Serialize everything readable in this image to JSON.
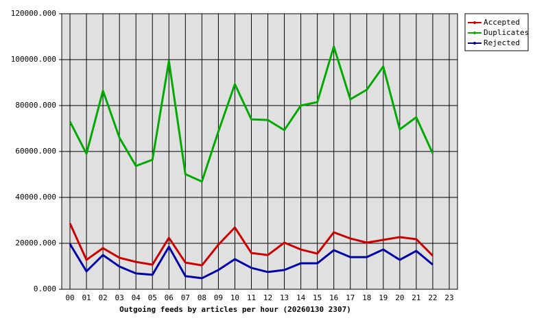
{
  "chart_data": {
    "type": "line",
    "x_label": "Outgoing feeds by articles per hour (20260130 2307)",
    "categories": [
      "00",
      "01",
      "02",
      "03",
      "04",
      "05",
      "06",
      "07",
      "08",
      "09",
      "10",
      "11",
      "12",
      "13",
      "14",
      "15",
      "16",
      "17",
      "18",
      "19",
      "20",
      "21",
      "22",
      "23"
    ],
    "series": [
      {
        "name": "Accepted",
        "color": "#cc0000",
        "values": [
          28700,
          12800,
          17900,
          13700,
          11900,
          10700,
          22400,
          11600,
          10400,
          19400,
          26900,
          15800,
          14900,
          20300,
          17300,
          15500,
          24800,
          22100,
          20300,
          21500,
          22700,
          21800,
          14600,
          null
        ]
      },
      {
        "name": "Duplicates",
        "color": "#00aa00",
        "values": [
          73000,
          59000,
          86500,
          66000,
          53700,
          56400,
          99400,
          50100,
          46900,
          68700,
          89300,
          74000,
          73700,
          69300,
          80000,
          81500,
          105700,
          82700,
          86900,
          97000,
          69600,
          74900,
          59100,
          null
        ]
      },
      {
        "name": "Rejected",
        "color": "#0000aa",
        "values": [
          19700,
          7800,
          14900,
          9900,
          6900,
          6300,
          18500,
          5700,
          4800,
          8400,
          13100,
          9300,
          7500,
          8400,
          11300,
          11300,
          17000,
          14000,
          14000,
          17300,
          12800,
          16700,
          10700,
          null
        ]
      }
    ],
    "ylim": [
      0,
      120000
    ],
    "yticks": [
      {
        "value": 0,
        "label": "0.000"
      },
      {
        "value": 20000,
        "label": "20000.000"
      },
      {
        "value": 40000,
        "label": "40000.000"
      },
      {
        "value": 60000,
        "label": "60000.000"
      },
      {
        "value": 80000,
        "label": "80000.000"
      },
      {
        "value": 100000,
        "label": "100000.000"
      },
      {
        "value": 120000,
        "label": "120000.000"
      }
    ],
    "grid": true,
    "legend": "top-right"
  }
}
